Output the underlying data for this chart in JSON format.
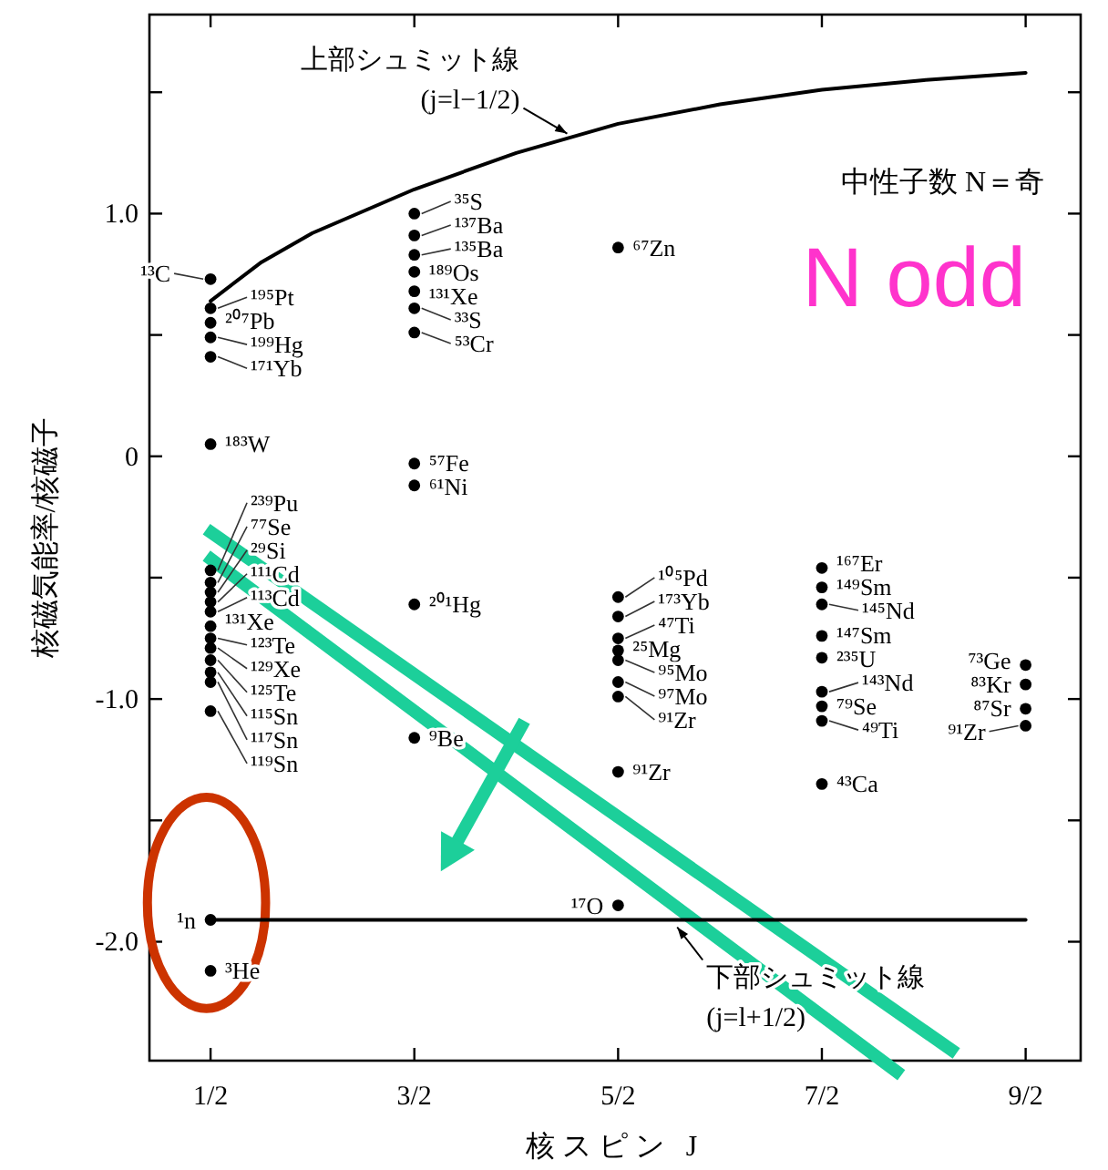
{
  "chart_data": {
    "type": "scatter",
    "xlabel": "核スピン J",
    "ylabel": "核磁気能率/核磁子",
    "xlim": [
      0.2,
      4.77
    ],
    "ylim": [
      -2.49,
      1.82
    ],
    "xticks": [
      {
        "value": 0.5,
        "label": "1/2"
      },
      {
        "value": 1.5,
        "label": "3/2"
      },
      {
        "value": 2.5,
        "label": "5/2"
      },
      {
        "value": 3.5,
        "label": "7/2"
      },
      {
        "value": 4.5,
        "label": "9/2"
      }
    ],
    "yticks": [
      {
        "value": 1.5,
        "label": null
      },
      {
        "value": 1.0,
        "label": "1.0"
      },
      {
        "value": 0.5,
        "label": null
      },
      0,
      {
        "value": -0.5,
        "label": null
      },
      {
        "value": -1.0,
        "label": "-1.0"
      },
      {
        "value": -1.5,
        "label": null
      },
      {
        "value": -2.0,
        "label": "-2.0"
      }
    ],
    "grid": false,
    "series": [
      {
        "color": "#000000",
        "marker": "circle",
        "x": [
          0.5,
          0.5,
          0.5,
          0.5,
          0.5,
          0.5,
          0.5,
          0.5,
          0.5,
          0.5,
          0.5,
          0.5,
          0.5,
          0.5,
          0.5,
          0.5,
          0.5,
          0.5,
          0.5,
          0.5,
          1.5,
          1.5,
          1.5,
          1.5,
          1.5,
          1.5,
          1.5,
          1.5,
          1.5,
          1.5,
          1.5,
          2.5,
          2.5,
          2.5,
          2.5,
          2.5,
          2.5,
          2.5,
          2.5,
          2.5,
          2.5,
          3.5,
          3.5,
          3.5,
          3.5,
          3.5,
          3.5,
          3.5,
          3.5,
          3.5,
          4.5,
          4.5,
          4.5,
          4.5
        ],
        "values": [
          0.73,
          0.61,
          0.55,
          0.49,
          0.41,
          0.05,
          -0.47,
          -0.52,
          -0.56,
          -0.6,
          -0.64,
          -0.7,
          -0.75,
          -0.79,
          -0.84,
          -0.89,
          -0.93,
          -1.05,
          -1.91,
          -2.12,
          1.0,
          0.91,
          0.83,
          0.76,
          0.68,
          0.61,
          0.51,
          -0.03,
          -0.12,
          -0.61,
          -1.16,
          0.86,
          -0.58,
          -0.66,
          -0.75,
          -0.8,
          -0.84,
          -0.93,
          -0.99,
          -1.3,
          -1.85,
          -0.46,
          -0.54,
          -0.61,
          -0.74,
          -0.83,
          -0.97,
          -1.03,
          -1.09,
          -1.35,
          -0.86,
          -0.94,
          -1.04,
          -1.11
        ],
        "value_labels": [
          "¹³C",
          "¹⁹⁵Pt",
          "²⁰⁷Pb",
          "¹⁹⁹Hg",
          "¹⁷¹Yb",
          "¹⁸³W",
          "²³⁹Pu",
          "⁷⁷Se",
          "²⁹Si",
          "¹¹¹Cd",
          "¹¹³Cd",
          "¹³¹Xe",
          "¹²³Te",
          "¹²⁹Xe",
          "¹²⁵Te",
          "¹¹⁵Sn",
          "¹¹⁷Sn",
          "¹¹⁹Sn",
          "¹n",
          "³He",
          "³⁵S",
          "¹³⁷Ba",
          "¹³⁵Ba",
          "¹⁸⁹Os",
          "¹³¹Xe",
          "³³S",
          "⁵³Cr",
          "⁵⁷Fe",
          "⁶¹Ni",
          "²⁰¹Hg",
          "⁹Be",
          "⁶⁷Zn",
          "¹⁰⁵Pd",
          "¹⁷³Yb",
          "⁴⁷Ti",
          "²⁵Mg",
          "⁹⁵Mo",
          "⁹⁷Mo",
          "⁹¹Zr",
          "⁹¹Zr",
          "¹⁷O",
          "¹⁶⁷Er",
          "¹⁴⁹Sm",
          "¹⁴⁵Nd",
          "¹⁴⁷Sm",
          "²³⁵U",
          "¹⁴³Nd",
          "⁷⁹Se",
          "⁴⁹Ti",
          "⁴³Ca",
          "⁷³Ge",
          "⁸³Kr",
          "⁸⁷Sr",
          "⁹¹Zr"
        ]
      },
      {
        "type": "line",
        "color": "#000000",
        "x": [
          0.5,
          0.75,
          1,
          1.5,
          2,
          2.5,
          3,
          3.5,
          4,
          4.5
        ],
        "values": [
          0.64,
          0.8,
          0.92,
          1.1,
          1.25,
          1.37,
          1.45,
          1.51,
          1.55,
          1.58
        ]
      },
      {
        "type": "line",
        "color": "#000000",
        "x": [
          0.5,
          4.5
        ],
        "values": [
          -1.91,
          -1.91
        ]
      }
    ],
    "annotations": [
      {
        "text": "上部シュミット線\n(j=l−1/2)",
        "x": 2.25,
        "y": 1.33
      },
      {
        "text": "下部シュミット線\n(j=l+1/2)",
        "x": 2.79,
        "y": -1.94
      },
      "中性子数 N＝奇",
      "N odd"
    ]
  }
}
